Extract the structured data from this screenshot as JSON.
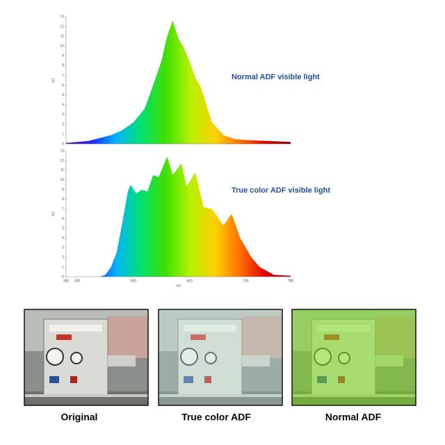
{
  "chart_data": [
    {
      "type": "area",
      "annotation": "Normal ADF visible light",
      "y_label": "%T",
      "x": [
        380,
        400,
        420,
        440,
        460,
        480,
        500,
        520,
        530,
        540,
        550,
        560,
        570,
        580,
        590,
        600,
        610,
        620,
        630,
        640,
        660,
        680,
        700,
        740,
        780
      ],
      "values": [
        0.1,
        0.2,
        0.3,
        0.6,
        0.9,
        1.4,
        2.2,
        3.6,
        5.2,
        6.8,
        8.5,
        11,
        12.6,
        10.8,
        9.8,
        8.4,
        6.8,
        5.8,
        4,
        2.2,
        0.9,
        0.5,
        0.4,
        0.3,
        0.2
      ],
      "xlim": [
        380,
        780
      ],
      "ylim": [
        0,
        13
      ],
      "yticks": [
        0,
        1,
        2,
        3,
        4,
        5,
        6,
        7,
        8,
        9,
        10,
        11,
        12,
        13
      ],
      "gradient": [
        "#5a1aa0",
        "#2020ff",
        "#00b4ff",
        "#00e070",
        "#40e000",
        "#b8f000",
        "#ffd000",
        "#ff6a00",
        "#e00000",
        "#7a0000"
      ]
    },
    {
      "type": "area",
      "annotation": "True color ADF visible light",
      "y_label": "%T",
      "x_label": "nm",
      "x": [
        380,
        440,
        450,
        460,
        470,
        480,
        490,
        495,
        505,
        515,
        525,
        535,
        545,
        560,
        570,
        585,
        595,
        610,
        625,
        640,
        660,
        675,
        690,
        710,
        725,
        750,
        780
      ],
      "values": [
        0,
        0,
        0.2,
        1,
        2.5,
        5.5,
        8.8,
        9.5,
        8.6,
        9,
        8.8,
        10.5,
        10.3,
        12.4,
        10.5,
        11.7,
        9.3,
        10.8,
        7.2,
        7,
        5.3,
        6.5,
        4,
        2,
        1,
        0.2,
        0.1
      ],
      "xlim": [
        380,
        780
      ],
      "xticks": [
        380,
        400,
        500,
        600,
        700,
        780
      ],
      "ylim": [
        0,
        13
      ],
      "yticks": [
        0,
        1,
        2,
        3,
        4,
        5,
        6,
        7,
        8,
        9,
        10,
        11,
        12,
        13
      ],
      "gradient": [
        "#5a1aa0",
        "#2020ff",
        "#00b4ff",
        "#00e070",
        "#40e000",
        "#b8f000",
        "#ffd000",
        "#ff6a00",
        "#e00000",
        "#7a0000"
      ]
    }
  ],
  "photos": {
    "captions": [
      "Original",
      "True color ADF",
      "Normal ADF"
    ]
  }
}
